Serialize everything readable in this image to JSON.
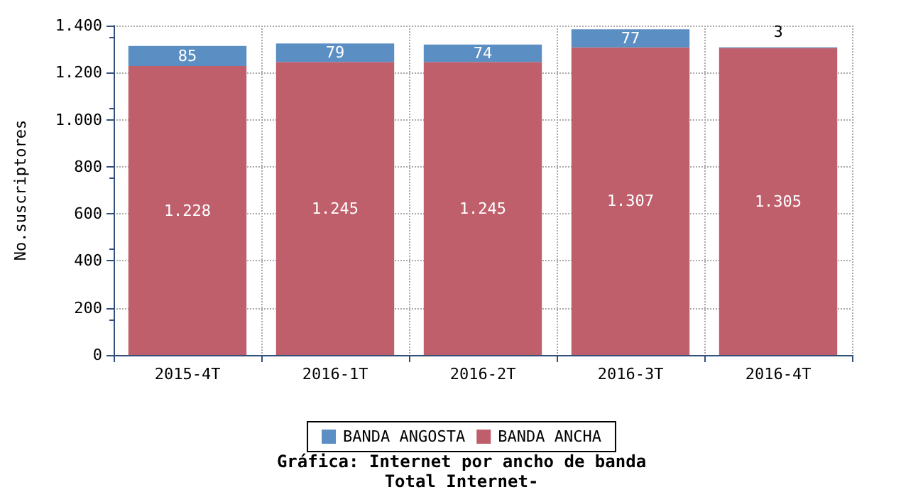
{
  "chart_data": {
    "type": "bar",
    "stacked": true,
    "title": "Gráfica: Internet por ancho de banda",
    "subtitle": "Total Internet-",
    "ylabel": "No.suscriptores",
    "categories": [
      "2015-4T",
      "2016-1T",
      "2016-2T",
      "2016-3T",
      "2016-4T"
    ],
    "series": [
      {
        "name": "BANDA ANCHA",
        "color": "#bf5f6b",
        "values": [
          1228,
          1245,
          1245,
          1307,
          1305
        ],
        "value_labels": [
          "1.228",
          "1.245",
          "1.245",
          "1.307",
          "1.305"
        ]
      },
      {
        "name": "BANDA ANGOSTA",
        "color": "#5b8ec2",
        "values": [
          85,
          79,
          74,
          77,
          3
        ],
        "value_labels": [
          "85",
          "79",
          "74",
          "77",
          "3"
        ]
      }
    ],
    "ylim": [
      0,
      1400
    ],
    "yticks": [
      0,
      200,
      400,
      600,
      800,
      {
        "value": 1000,
        "label": "1.000"
      },
      {
        "value": 1200,
        "label": "1.200"
      },
      {
        "value": 1400,
        "label": "1.400"
      }
    ],
    "grid": true,
    "legend": "bottom"
  }
}
